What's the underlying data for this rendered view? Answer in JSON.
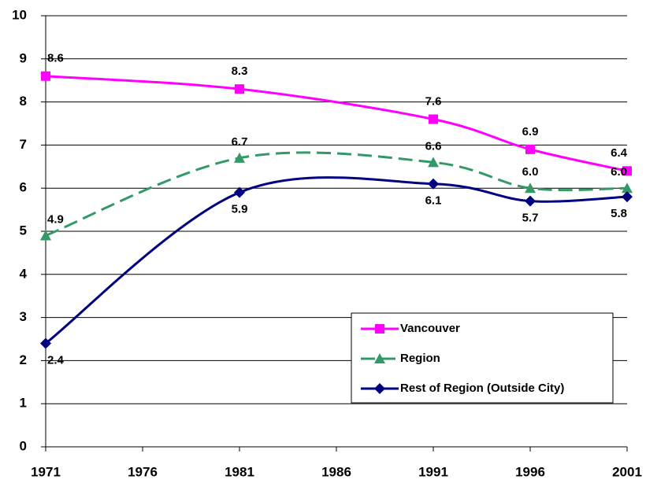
{
  "chart_data": {
    "type": "line",
    "x": [
      1971,
      1981,
      1991,
      1996,
      2001
    ],
    "series": [
      {
        "name": "Vancouver",
        "color": "#ff00ff",
        "marker": "square",
        "line_style": "solid",
        "values": [
          8.6,
          8.3,
          7.6,
          6.9,
          6.4
        ],
        "value_labels": [
          "8.6",
          "8.3",
          "7.6",
          "6.9",
          "6.4"
        ]
      },
      {
        "name": "Region",
        "color": "#339966",
        "marker": "triangle",
        "line_style": "dashed",
        "values": [
          4.9,
          6.7,
          6.6,
          6.0,
          6.0
        ],
        "value_labels": [
          "4.9",
          "6.7",
          "6.6",
          "6.0",
          "6.0"
        ]
      },
      {
        "name": "Rest of Region (Outside City)",
        "color": "#000080",
        "marker": "diamond",
        "line_style": "solid",
        "values": [
          2.4,
          5.9,
          6.1,
          5.7,
          5.8
        ],
        "value_labels": [
          "2.4",
          "5.9",
          "6.1",
          "5.7",
          "5.8"
        ]
      }
    ],
    "xlim": [
      1971,
      2001
    ],
    "xticks": [
      1971,
      1976,
      1981,
      1986,
      1991,
      1996,
      2001
    ],
    "ylim": [
      0,
      10
    ],
    "yticks": [
      0,
      1,
      2,
      3,
      4,
      5,
      6,
      7,
      8,
      9,
      10
    ],
    "grid": true,
    "smooth": true,
    "legend": "lower right"
  }
}
